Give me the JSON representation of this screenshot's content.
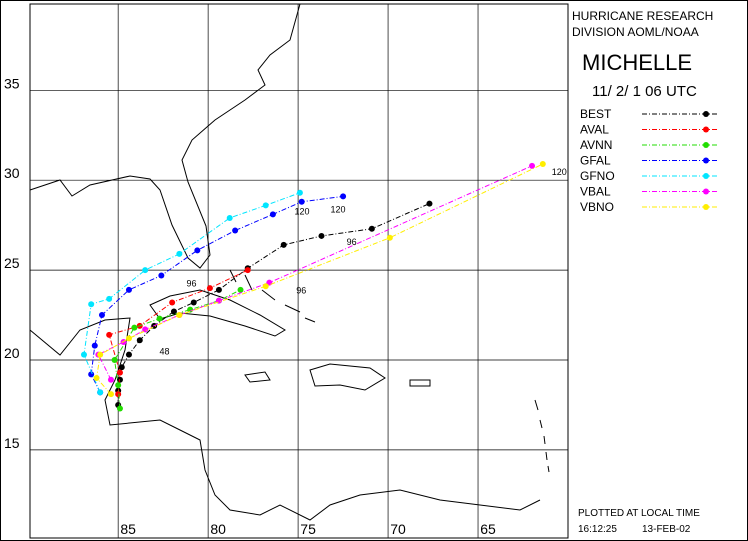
{
  "chart_data": {
    "type": "track",
    "header": [
      "HURRICANE RESEARCH",
      "DIVISION AOML/NOAA"
    ],
    "title": "MICHELLE",
    "subtitle": "11/ 2/ 1 06  UTC",
    "footer": [
      "PLOTTED AT LOCAL TIME",
      "16:12:25",
      "13-FEB-02"
    ],
    "xlim": [
      89.9,
      60.0
    ],
    "ylim": [
      10.1,
      39.8
    ],
    "xticks": [
      85,
      80,
      75,
      70,
      65
    ],
    "yticks": [
      15,
      20,
      25,
      30,
      35
    ],
    "grid": true,
    "series": [
      {
        "name": "BEST",
        "color": "#000000",
        "x": [
          85.0,
          85.0,
          84.9,
          84.8,
          84.4,
          83.8,
          83.0,
          81.9,
          80.8,
          79.4,
          77.8,
          75.8,
          73.7,
          70.9,
          67.7
        ],
        "values": [
          17.5,
          18.3,
          18.9,
          19.6,
          20.3,
          21.1,
          21.9,
          22.7,
          23.2,
          23.9,
          25.1,
          26.4,
          26.9,
          27.3,
          28.7
        ]
      },
      {
        "name": "AVAL",
        "color": "#ff0000",
        "x": [
          85.0,
          84.9,
          85.5,
          83.8,
          82.0,
          79.9,
          77.8
        ],
        "values": [
          18.1,
          19.3,
          21.4,
          21.9,
          23.2,
          24.0,
          25.0
        ]
      },
      {
        "name": "AVNN",
        "color": "#22dd00",
        "x": [
          84.9,
          85.0,
          85.2,
          84.1,
          82.7,
          81.0,
          79.4,
          78.2
        ],
        "values": [
          17.3,
          18.6,
          20.0,
          21.8,
          22.3,
          22.8,
          23.3,
          23.9
        ]
      },
      {
        "name": "GFAL",
        "color": "#0000ff",
        "x": [
          86.0,
          86.5,
          86.3,
          85.9,
          84.4,
          82.6,
          80.6,
          78.5,
          76.4,
          74.8,
          72.5
        ],
        "values": [
          18.2,
          19.2,
          20.8,
          22.5,
          23.9,
          24.7,
          26.1,
          27.2,
          28.1,
          28.8,
          29.1
        ]
      },
      {
        "name": "GFNO",
        "color": "#00e5ff",
        "x": [
          86.0,
          86.9,
          86.5,
          85.5,
          83.5,
          81.6,
          78.8,
          76.8,
          74.9
        ],
        "values": [
          18.2,
          20.3,
          23.1,
          23.4,
          25.0,
          25.9,
          27.9,
          28.6,
          29.3
        ]
      },
      {
        "name": "VBAL",
        "color": "#ff00ff",
        "x": [
          85.4,
          86.1,
          84.7,
          83.5,
          81.6,
          79.4,
          76.6,
          62.0
        ],
        "values": [
          18.9,
          20.3,
          21.0,
          21.7,
          22.5,
          23.3,
          24.3,
          30.8
        ]
      },
      {
        "name": "VBNO",
        "color": "#ffee00",
        "x": [
          85.4,
          86.2,
          86.0,
          84.4,
          81.6,
          76.8,
          69.9,
          61.4
        ],
        "values": [
          18.1,
          19.0,
          20.3,
          21.2,
          22.5,
          24.1,
          26.8,
          30.9
        ]
      }
    ],
    "annotations": [
      {
        "text": "96",
        "x": 72.3,
        "y": 26.4
      },
      {
        "text": "120",
        "x": 73.2,
        "y": 28.2
      },
      {
        "text": "96",
        "x": 81.2,
        "y": 24.1
      },
      {
        "text": "48",
        "x": 82.7,
        "y": 20.3
      },
      {
        "text": "120",
        "x": 75.2,
        "y": 28.1
      },
      {
        "text": "96",
        "x": 75.1,
        "y": 23.7
      },
      {
        "text": "120",
        "x": 60.9,
        "y": 30.3
      }
    ]
  }
}
